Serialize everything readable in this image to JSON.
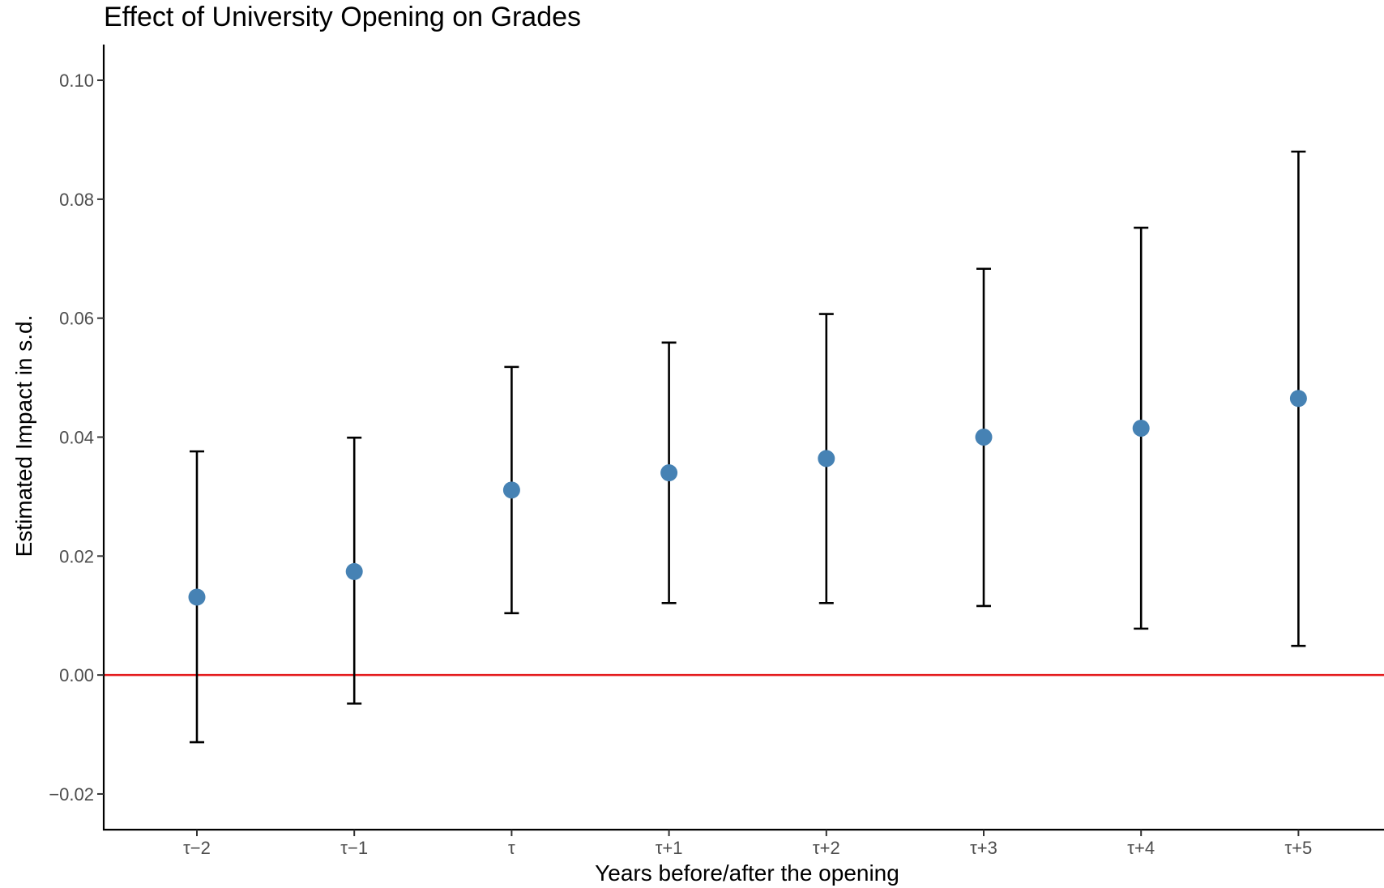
{
  "chart_data": {
    "type": "scatter",
    "title": "Effect of University Opening on Grades",
    "xlabel": "Years before/after the opening",
    "ylabel": "Estimated Impact in s.d.",
    "categories": [
      "τ−2",
      "τ−1",
      "τ",
      "τ+1",
      "τ+2",
      "τ+3",
      "τ+4",
      "τ+5"
    ],
    "series": [
      {
        "values": [
          0.0131,
          0.0174,
          0.0311,
          0.034,
          0.0364,
          0.04,
          0.0415,
          0.0465
        ],
        "lower": [
          -0.0113,
          -0.0048,
          0.0104,
          0.0121,
          0.0121,
          0.0116,
          0.0078,
          0.0049
        ],
        "upper": [
          0.0376,
          0.0399,
          0.0518,
          0.0559,
          0.0607,
          0.0683,
          0.0752,
          0.088
        ]
      }
    ],
    "yticks": [
      -0.02,
      0.0,
      0.02,
      0.04,
      0.06,
      0.08,
      0.1
    ],
    "ytick_labels": [
      "−0.02",
      "0.00",
      "0.02",
      "0.04",
      "0.06",
      "0.08",
      "0.10"
    ],
    "ylim": [
      -0.026,
      0.106
    ],
    "reference_line": {
      "y": 0.0
    },
    "grid": false,
    "legend": "none",
    "colors": {
      "point": "#4682b4",
      "errorbar": "#000000",
      "reference_line": "#e41a1c",
      "axis": "#000000",
      "tick_label": "#4d4d4d"
    }
  }
}
